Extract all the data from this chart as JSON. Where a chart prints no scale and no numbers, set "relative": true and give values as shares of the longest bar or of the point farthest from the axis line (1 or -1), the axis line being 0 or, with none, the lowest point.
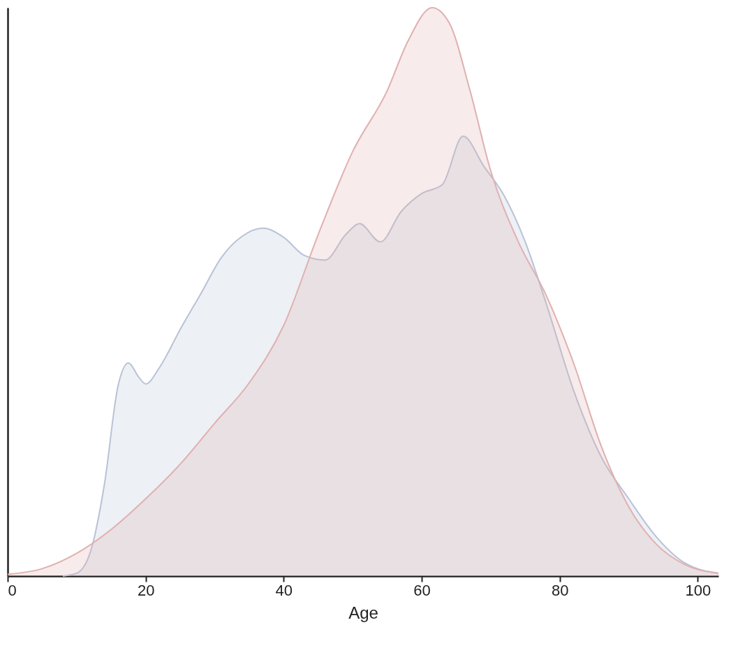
{
  "chart_data": {
    "type": "area",
    "relative": true,
    "xlabel": "Age",
    "xlim": [
      0,
      103
    ],
    "xticks": [
      0,
      20,
      40,
      60,
      80,
      100
    ],
    "series": [
      {
        "color": "#b9c2d6",
        "x": [
          8,
          10,
          12,
          14,
          16,
          17.5,
          19,
          20,
          22,
          25,
          28,
          31,
          34,
          37,
          40,
          43,
          46,
          49,
          51,
          54,
          57,
          60,
          63,
          66,
          69,
          72,
          75,
          78,
          82,
          86,
          90,
          94,
          98,
          103
        ],
        "values": [
          0,
          0.005,
          0.043,
          0.16,
          0.335,
          0.375,
          0.35,
          0.338,
          0.367,
          0.434,
          0.497,
          0.561,
          0.598,
          0.612,
          0.596,
          0.564,
          0.556,
          0.601,
          0.62,
          0.588,
          0.641,
          0.673,
          0.689,
          0.774,
          0.721,
          0.668,
          0.588,
          0.481,
          0.327,
          0.21,
          0.136,
          0.069,
          0.024,
          0.005
        ]
      },
      {
        "color": "#e0b0b0",
        "x": [
          0,
          5,
          10,
          15,
          20,
          25,
          30,
          35,
          40,
          45,
          50,
          55,
          58,
          61.5,
          64,
          67,
          70,
          74,
          78,
          82,
          86,
          90,
          94,
          98,
          103
        ],
        "values": [
          0.003,
          0.013,
          0.04,
          0.082,
          0.136,
          0.197,
          0.269,
          0.34,
          0.441,
          0.601,
          0.747,
          0.854,
          0.941,
          1,
          0.973,
          0.854,
          0.713,
          0.588,
          0.495,
          0.375,
          0.229,
          0.122,
          0.056,
          0.021,
          0.005
        ]
      }
    ]
  }
}
